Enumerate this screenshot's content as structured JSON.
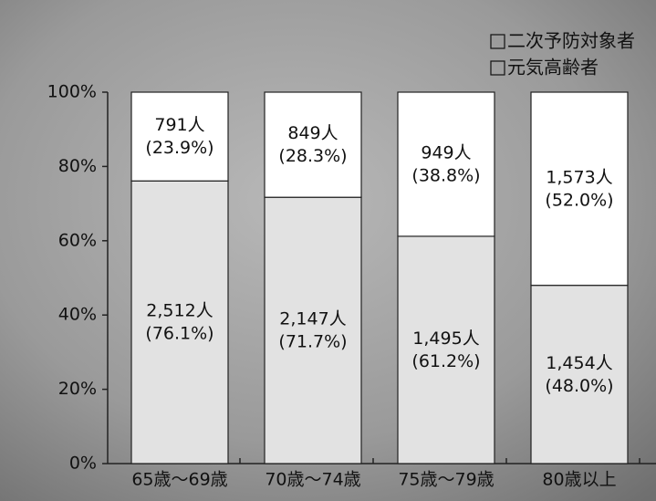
{
  "chart_data": {
    "type": "stacked-bar",
    "categories": [
      "65歳〜69歳",
      "70歳〜74歳",
      "75歳〜79歳",
      "80歳以上"
    ],
    "series": [
      {
        "name": "二次予防対象者",
        "color": "#ffffff",
        "values": [
          23.9,
          28.3,
          38.8,
          52.0
        ],
        "value_labels": [
          "(23.9%)",
          "(28.3%)",
          "(38.8%)",
          "(52.0%)"
        ],
        "count_labels": [
          "791人",
          "849人",
          "949人",
          "1,573人"
        ]
      },
      {
        "name": "元気高齢者",
        "color": "#e2e2e2",
        "values": [
          76.1,
          71.7,
          61.2,
          48.0
        ],
        "value_labels": [
          "(76.1%)",
          "(71.7%)",
          "(61.2%)",
          "(48.0%)"
        ],
        "count_labels": [
          "2,512人",
          "2,147人",
          "1,495人",
          "1,454人"
        ]
      }
    ],
    "ylim": [
      0,
      100
    ],
    "yticks": [
      {
        "value": 0,
        "label": "0%"
      },
      {
        "value": 20,
        "label": "20%"
      },
      {
        "value": 40,
        "label": "40%"
      },
      {
        "value": 60,
        "label": "60%"
      },
      {
        "value": 80,
        "label": "80%"
      },
      {
        "value": 100,
        "label": "100%"
      }
    ]
  }
}
